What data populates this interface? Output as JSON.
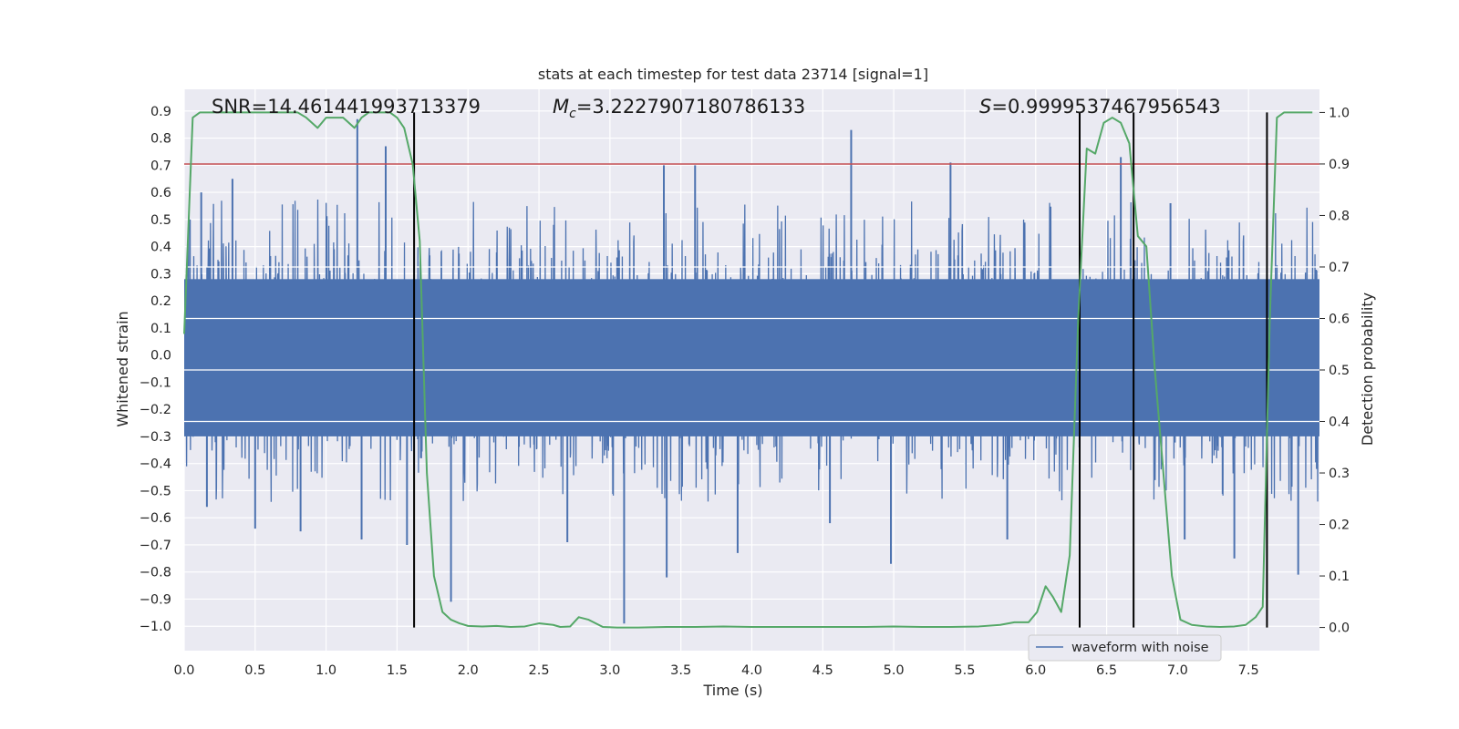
{
  "chart_data": {
    "type": "line",
    "title": "stats at each timestep for test data 23714 [signal=1]",
    "xlabel": "Time (s)",
    "ylabel": "Whitened strain",
    "y2label": "Detection probability",
    "xlim": [
      0.0,
      8.0
    ],
    "ylim": [
      -1.09,
      0.98
    ],
    "y2lim": [
      -0.045,
      1.045
    ],
    "xticks": [
      "0.0",
      "0.5",
      "1.0",
      "1.5",
      "2.0",
      "2.5",
      "3.0",
      "3.5",
      "4.0",
      "4.5",
      "5.0",
      "5.5",
      "6.0",
      "6.5",
      "7.0",
      "7.5"
    ],
    "yticks": [
      "0.9",
      "0.8",
      "0.7",
      "0.6",
      "0.5",
      "0.4",
      "0.3",
      "0.2",
      "0.1",
      "0.0",
      "-0.1",
      "-0.2",
      "-0.3",
      "-0.4",
      "-0.5",
      "-0.6",
      "-0.7",
      "-0.8",
      "-0.9",
      "-1.0"
    ],
    "y2ticks": [
      "1.0",
      "0.9",
      "0.8",
      "0.7",
      "0.6",
      "0.5",
      "0.4",
      "0.3",
      "0.2",
      "0.1",
      "0.0"
    ],
    "annotations": {
      "snr": "SNR=14.461441993713379",
      "mc": "=3.2227907180786133",
      "mc_symbol": "M",
      "mc_sub": "c",
      "s": "=0.9999537467956543",
      "s_symbol": "S"
    },
    "threshold": {
      "value": 0.9,
      "axis": "y2",
      "color": "#c44e52"
    },
    "event_markers_x": [
      1.62,
      6.31,
      6.69,
      7.63
    ],
    "series": [
      {
        "name": "waveform with noise",
        "axis": "y",
        "color": "#4c72b0",
        "envelope_typical": [
          -0.45,
          0.48
        ],
        "spikes": [
          [
            0.04,
            0.5
          ],
          [
            0.12,
            0.6
          ],
          [
            0.16,
            -0.56
          ],
          [
            0.34,
            0.65
          ],
          [
            0.5,
            -0.64
          ],
          [
            0.82,
            -0.65
          ],
          [
            1.22,
            0.87
          ],
          [
            1.25,
            -0.68
          ],
          [
            1.42,
            0.77
          ],
          [
            1.57,
            -0.7
          ],
          [
            1.88,
            -0.91
          ],
          [
            3.1,
            -0.99
          ],
          [
            3.4,
            -0.82
          ],
          [
            3.38,
            0.7
          ],
          [
            3.6,
            0.7
          ],
          [
            3.9,
            -0.73
          ],
          [
            4.7,
            0.83
          ],
          [
            4.55,
            -0.62
          ],
          [
            4.98,
            -0.77
          ],
          [
            5.4,
            0.71
          ],
          [
            5.8,
            -0.68
          ],
          [
            6.6,
            0.73
          ],
          [
            7.05,
            -0.68
          ],
          [
            7.4,
            -0.75
          ],
          [
            7.85,
            -0.81
          ],
          [
            6.95,
            0.56
          ],
          [
            2.7,
            -0.69
          ]
        ]
      },
      {
        "name": "detection probability",
        "axis": "y2",
        "color": "#55a868",
        "x": [
          0.0,
          0.06,
          0.11,
          0.2,
          0.3,
          0.4,
          0.5,
          0.6,
          0.7,
          0.8,
          0.86,
          0.94,
          1.0,
          1.06,
          1.12,
          1.2,
          1.25,
          1.3,
          1.38,
          1.45,
          1.5,
          1.55,
          1.61,
          1.66,
          1.71,
          1.76,
          1.82,
          1.88,
          1.94,
          2.0,
          2.1,
          2.2,
          2.3,
          2.4,
          2.5,
          2.6,
          2.65,
          2.72,
          2.78,
          2.85,
          2.95,
          3.05,
          3.2,
          3.4,
          3.6,
          3.8,
          4.0,
          4.2,
          4.4,
          4.6,
          4.8,
          5.0,
          5.2,
          5.4,
          5.6,
          5.75,
          5.85,
          5.95,
          6.01,
          6.07,
          6.12,
          6.18,
          6.24,
          6.3,
          6.36,
          6.42,
          6.48,
          6.54,
          6.6,
          6.66,
          6.72,
          6.78,
          6.84,
          6.9,
          6.96,
          7.02,
          7.1,
          7.2,
          7.3,
          7.4,
          7.48,
          7.55,
          7.6,
          7.65,
          7.7,
          7.75,
          7.82,
          7.95
        ],
        "y": [
          0.57,
          0.99,
          1.0,
          1.0,
          1.0,
          1.0,
          1.0,
          1.0,
          1.0,
          1.0,
          0.99,
          0.97,
          0.99,
          0.99,
          0.99,
          0.97,
          0.99,
          1.0,
          1.0,
          1.0,
          0.99,
          0.97,
          0.9,
          0.75,
          0.3,
          0.1,
          0.03,
          0.015,
          0.008,
          0.003,
          0.002,
          0.003,
          0.001,
          0.002,
          0.008,
          0.005,
          0.001,
          0.002,
          0.02,
          0.015,
          0.001,
          0.0,
          0.0,
          0.001,
          0.001,
          0.002,
          0.001,
          0.001,
          0.001,
          0.001,
          0.001,
          0.002,
          0.001,
          0.001,
          0.002,
          0.005,
          0.01,
          0.01,
          0.03,
          0.08,
          0.06,
          0.03,
          0.14,
          0.6,
          0.93,
          0.92,
          0.98,
          0.99,
          0.98,
          0.94,
          0.76,
          0.74,
          0.5,
          0.3,
          0.1,
          0.015,
          0.005,
          0.002,
          0.001,
          0.002,
          0.005,
          0.02,
          0.04,
          0.6,
          0.99,
          1.0,
          1.0,
          1.0
        ]
      }
    ],
    "legend": {
      "position": "bottom-right",
      "entries": [
        "waveform with noise"
      ]
    }
  }
}
